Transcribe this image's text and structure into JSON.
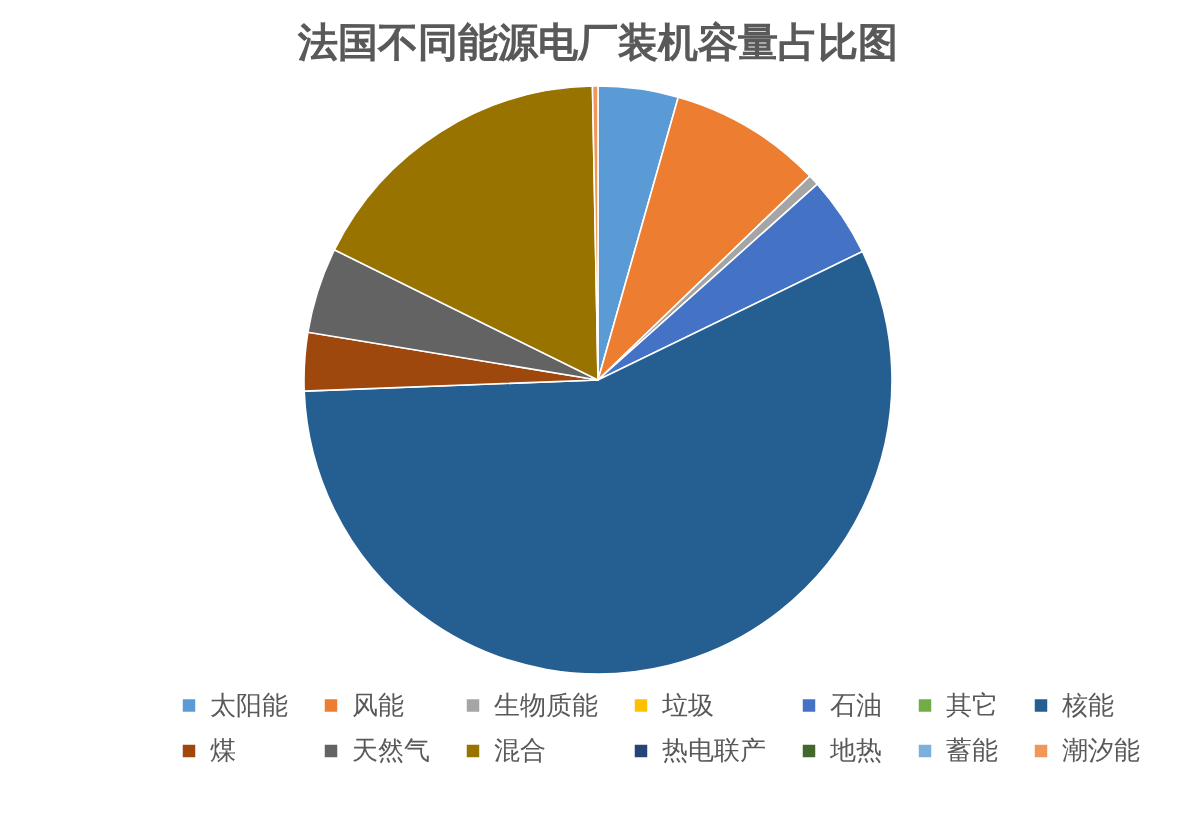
{
  "chart_data": {
    "type": "pie",
    "title": "法国不同能源电厂装机容量占比图",
    "categories": [
      "太阳能",
      "风能",
      "生物质能",
      "垃圾",
      "石油",
      "其它",
      "核能",
      "煤",
      "天然气",
      "混合",
      "热电联产",
      "地热",
      "蓄能",
      "潮汐能"
    ],
    "values": [
      4.4,
      8.4,
      0.6,
      0,
      4.4,
      0,
      56.6,
      3.2,
      4.7,
      17.4,
      0,
      0,
      0,
      0.3
    ],
    "colors": [
      "#5b9bd5",
      "#ed7d31",
      "#a5a5a5",
      "#ffc000",
      "#4472c4",
      "#70ad47",
      "#255e91",
      "#9e480e",
      "#636363",
      "#997300",
      "#264478",
      "#43682b",
      "#7cafdd",
      "#f1975a"
    ],
    "legend": "bottom"
  }
}
